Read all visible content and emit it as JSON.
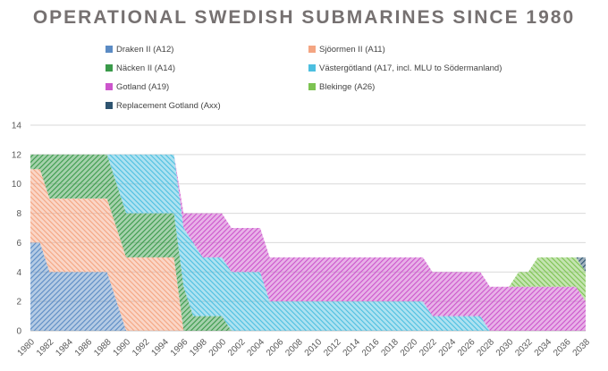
{
  "chart_data": {
    "type": "area",
    "stacked": true,
    "title": "OPERATIONAL SWEDISH SUBMARINES SINCE 1980",
    "xlabel": "",
    "ylabel": "",
    "ylim": [
      0,
      14
    ],
    "yticks": [
      0,
      2,
      4,
      6,
      8,
      10,
      12,
      14
    ],
    "xlim": [
      1980,
      2038
    ],
    "xticks": [
      1980,
      1982,
      1984,
      1986,
      1988,
      1990,
      1992,
      1994,
      1996,
      1998,
      2000,
      2002,
      2004,
      2006,
      2008,
      2010,
      2012,
      2014,
      2016,
      2018,
      2020,
      2022,
      2024,
      2026,
      2028,
      2030,
      2032,
      2034,
      2036,
      2038
    ],
    "x": [
      1980,
      1981,
      1982,
      1983,
      1984,
      1985,
      1986,
      1987,
      1988,
      1989,
      1990,
      1991,
      1992,
      1993,
      1994,
      1995,
      1996,
      1997,
      1998,
      1999,
      2000,
      2001,
      2002,
      2003,
      2004,
      2005,
      2006,
      2007,
      2008,
      2009,
      2010,
      2011,
      2012,
      2013,
      2014,
      2015,
      2016,
      2017,
      2018,
      2019,
      2020,
      2021,
      2022,
      2023,
      2024,
      2025,
      2026,
      2027,
      2028,
      2029,
      2030,
      2031,
      2032,
      2033,
      2034,
      2035,
      2036,
      2037,
      2038
    ],
    "legend_position": "top",
    "series": [
      {
        "name": "Draken II (A12)",
        "color": "#5b8bc4",
        "values": [
          6,
          6,
          4,
          4,
          4,
          4,
          4,
          4,
          4,
          2,
          0,
          0,
          0,
          0,
          0,
          0,
          0,
          0,
          0,
          0,
          0,
          0,
          0,
          0,
          0,
          0,
          0,
          0,
          0,
          0,
          0,
          0,
          0,
          0,
          0,
          0,
          0,
          0,
          0,
          0,
          0,
          0,
          0,
          0,
          0,
          0,
          0,
          0,
          0,
          0,
          0,
          0,
          0,
          0,
          0,
          0,
          0,
          0,
          0
        ]
      },
      {
        "name": "Sjöormen II (A11)",
        "color": "#f4a582",
        "values": [
          5,
          5,
          5,
          5,
          5,
          5,
          5,
          5,
          5,
          5,
          5,
          5,
          5,
          5,
          5,
          5,
          0,
          0,
          0,
          0,
          0,
          0,
          0,
          0,
          0,
          0,
          0,
          0,
          0,
          0,
          0,
          0,
          0,
          0,
          0,
          0,
          0,
          0,
          0,
          0,
          0,
          0,
          0,
          0,
          0,
          0,
          0,
          0,
          0,
          0,
          0,
          0,
          0,
          0,
          0,
          0,
          0,
          0,
          0
        ]
      },
      {
        "name": "Näcken II (A14)",
        "color": "#3a9a4a",
        "values": [
          1,
          1,
          3,
          3,
          3,
          3,
          3,
          3,
          3,
          3,
          3,
          3,
          3,
          3,
          3,
          3,
          3,
          1,
          1,
          1,
          1,
          0,
          0,
          0,
          0,
          0,
          0,
          0,
          0,
          0,
          0,
          0,
          0,
          0,
          0,
          0,
          0,
          0,
          0,
          0,
          0,
          0,
          0,
          0,
          0,
          0,
          0,
          0,
          0,
          0,
          0,
          0,
          0,
          0,
          0,
          0,
          0,
          0,
          0
        ]
      },
      {
        "name": "Västergötland (A17, incl. MLU to Södermanland)",
        "color": "#4cbfe0",
        "values": [
          0,
          0,
          0,
          0,
          0,
          0,
          0,
          0,
          0,
          2,
          4,
          4,
          4,
          4,
          4,
          4,
          4,
          5,
          4,
          4,
          4,
          4,
          4,
          4,
          4,
          2,
          2,
          2,
          2,
          2,
          2,
          2,
          2,
          2,
          2,
          2,
          2,
          2,
          2,
          2,
          2,
          2,
          1,
          1,
          1,
          1,
          1,
          1,
          0,
          0,
          0,
          0,
          0,
          0,
          0,
          0,
          0,
          0,
          0
        ]
      },
      {
        "name": "Gotland (A19)",
        "color": "#cc55cc",
        "values": [
          0,
          0,
          0,
          0,
          0,
          0,
          0,
          0,
          0,
          0,
          0,
          0,
          0,
          0,
          0,
          0,
          1,
          2,
          3,
          3,
          3,
          3,
          3,
          3,
          3,
          3,
          3,
          3,
          3,
          3,
          3,
          3,
          3,
          3,
          3,
          3,
          3,
          3,
          3,
          3,
          3,
          3,
          3,
          3,
          3,
          3,
          3,
          3,
          3,
          3,
          3,
          3,
          3,
          3,
          3,
          3,
          3,
          3,
          2
        ]
      },
      {
        "name": "Blekinge (A26)",
        "color": "#7dc352",
        "values": [
          0,
          0,
          0,
          0,
          0,
          0,
          0,
          0,
          0,
          0,
          0,
          0,
          0,
          0,
          0,
          0,
          0,
          0,
          0,
          0,
          0,
          0,
          0,
          0,
          0,
          0,
          0,
          0,
          0,
          0,
          0,
          0,
          0,
          0,
          0,
          0,
          0,
          0,
          0,
          0,
          0,
          0,
          0,
          0,
          0,
          0,
          0,
          0,
          0,
          0,
          0,
          1,
          1,
          2,
          2,
          2,
          2,
          2,
          2
        ]
      },
      {
        "name": "Replacement Gotland (Axx)",
        "color": "#2e5470",
        "values": [
          0,
          0,
          0,
          0,
          0,
          0,
          0,
          0,
          0,
          0,
          0,
          0,
          0,
          0,
          0,
          0,
          0,
          0,
          0,
          0,
          0,
          0,
          0,
          0,
          0,
          0,
          0,
          0,
          0,
          0,
          0,
          0,
          0,
          0,
          0,
          0,
          0,
          0,
          0,
          0,
          0,
          0,
          0,
          0,
          0,
          0,
          0,
          0,
          0,
          0,
          0,
          0,
          0,
          0,
          0,
          0,
          0,
          0,
          1
        ]
      }
    ]
  }
}
